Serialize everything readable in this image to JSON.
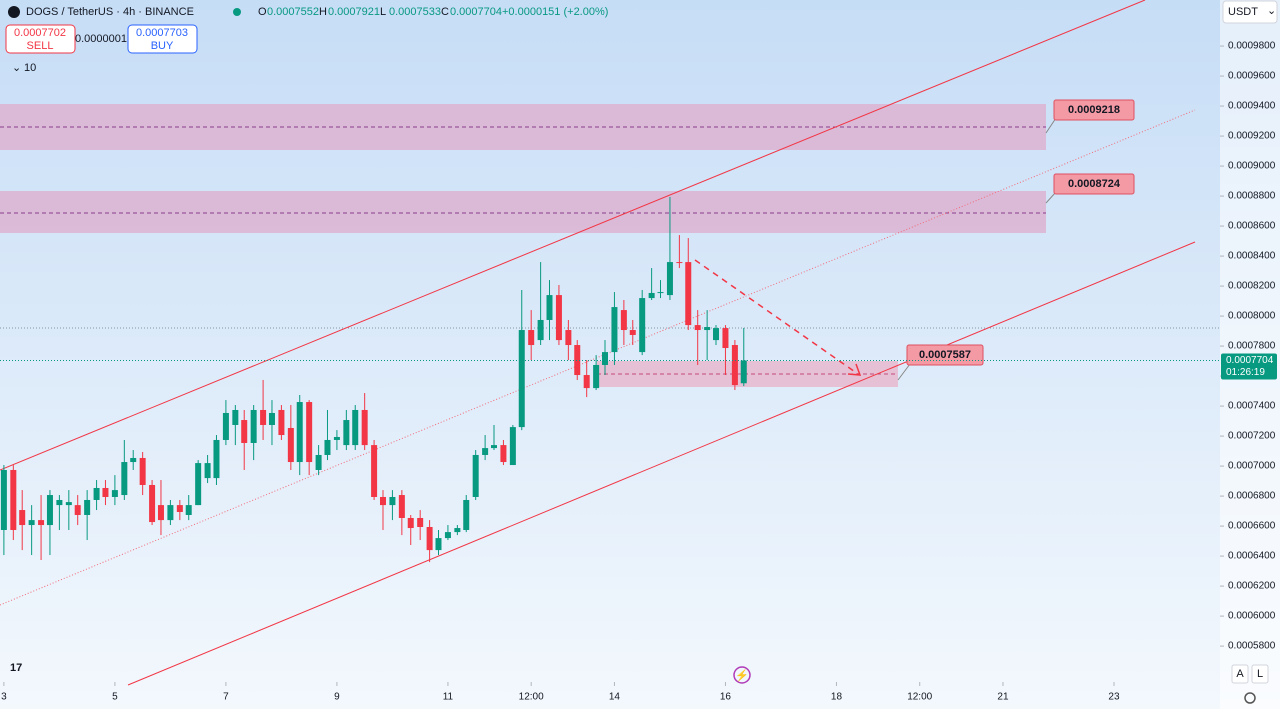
{
  "ui": {
    "symbol": "DOGS / TetherUS · 4h · BINANCE",
    "ohlc": [
      {
        "key": "O",
        "value": "0.0007552"
      },
      {
        "key": "H",
        "value": "0.0007921"
      },
      {
        "key": "L",
        "value": "0.0007533"
      },
      {
        "key": "C",
        "value": "0.0007704"
      }
    ],
    "change": "+0.0000151 (+2.00%)",
    "sell": {
      "price": "0.0007702",
      "label": "SELL"
    },
    "spread": "0.0000001",
    "buy": {
      "price": "0.0007703",
      "label": "BUY"
    },
    "indicator": "10",
    "currency": "USDT",
    "buttons": [
      "A",
      "L"
    ]
  },
  "chart_data": {
    "type": "candlestick",
    "x": [
      3,
      3.17,
      3.33,
      3.5,
      3.67,
      3.83,
      4,
      4.17,
      4.33,
      4.5,
      4.67,
      4.83,
      5,
      5.17,
      5.33,
      5.5,
      5.67,
      5.83,
      6,
      6.17,
      6.33,
      6.5,
      6.67,
      6.83,
      7,
      7.17,
      7.33,
      7.5,
      7.67,
      7.83,
      8,
      8.17,
      8.33,
      8.5,
      8.67,
      8.83,
      9,
      9.17,
      9.33,
      9.5,
      9.67,
      9.83,
      10,
      10.17,
      10.33,
      10.5,
      10.67,
      10.83,
      11,
      11.17,
      11.33,
      11.5,
      11.67,
      11.83,
      12,
      12.17,
      12.33,
      12.5,
      12.67,
      12.83,
      13,
      13.17,
      13.33,
      13.5,
      13.67,
      13.83,
      14,
      14.17,
      14.33,
      14.5,
      14.67,
      14.83,
      15,
      15.17,
      15.33,
      15.5,
      15.67,
      15.83,
      16,
      16.17,
      16.33
    ],
    "open": [
      0.0006574,
      0.0006974,
      0.0006707,
      0.0006607,
      0.000664,
      0.0006607,
      0.000674,
      0.000674,
      0.000674,
      0.0006674,
      0.0006774,
      0.0006854,
      0.0006794,
      0.0006807,
      0.0007027,
      0.0007054,
      0.0006874,
      0.000674,
      0.000664,
      0.000674,
      0.0006674,
      0.000674,
      0.000692,
      0.000692,
      0.0007174,
      0.0007274,
      0.0007307,
      0.0007154,
      0.0007374,
      0.0007274,
      0.0007374,
      0.0007254,
      0.0007027,
      0.0007427,
      0.0006974,
      0.0007074,
      0.0007174,
      0.000714,
      0.000714,
      0.0007374,
      0.000714,
      0.0006794,
      0.000674,
      0.0006807,
      0.0006654,
      0.0006654,
      0.0006594,
      0.000644,
      0.000652,
      0.000656,
      0.0006574,
      0.0006794,
      0.0007074,
      0.000712,
      0.000714,
      0.0007007,
      0.000726,
      0.0007907,
      0.000784,
      0.0007974,
      0.000814,
      0.0007907,
      0.0007807,
      0.0007607,
      0.000752,
      0.0007674,
      0.000776,
      0.000804,
      0.0007907,
      0.000776,
      0.000812,
      0.0008154,
      0.000814,
      0.000836,
      0.000836,
      0.000794,
      0.0007907,
      0.000784,
      0.000792,
      0.0007807,
      0.0007552
    ],
    "high": [
      0.0007007,
      0.0007007,
      0.000684,
      0.000674,
      0.0006807,
      0.000684,
      0.0006807,
      0.000684,
      0.0006807,
      0.000684,
      0.0006907,
      0.0006907,
      0.000694,
      0.0007174,
      0.0007107,
      0.0007094,
      0.0006907,
      0.0006907,
      0.0006774,
      0.0006774,
      0.0006807,
      0.000704,
      0.0007074,
      0.0007207,
      0.000744,
      0.0007407,
      0.0007374,
      0.0007407,
      0.0007574,
      0.000744,
      0.0007407,
      0.0007407,
      0.0007474,
      0.000744,
      0.000714,
      0.0007374,
      0.000724,
      0.0007374,
      0.0007407,
      0.0007487,
      0.0007174,
      0.000684,
      0.000684,
      0.000684,
      0.0006674,
      0.0006707,
      0.000664,
      0.0006574,
      0.0006607,
      0.0006607,
      0.0006807,
      0.0007107,
      0.0007207,
      0.0007274,
      0.0007174,
      0.0007274,
      0.0008174,
      0.000804,
      0.000836,
      0.000824,
      0.0008207,
      0.0007974,
      0.000784,
      0.0007707,
      0.000774,
      0.000784,
      0.000816,
      0.0008107,
      0.0007974,
      0.0008174,
      0.000832,
      0.000824,
      0.0008794,
      0.000854,
      0.000852,
      0.000804,
      0.000804,
      0.000794,
      0.000794,
      0.000784,
      0.0007921
    ],
    "low": [
      0.0006407,
      0.0006507,
      0.000644,
      0.0006407,
      0.0006374,
      0.0006407,
      0.0006574,
      0.0006574,
      0.0006607,
      0.0006507,
      0.0006707,
      0.000674,
      0.000674,
      0.0006774,
      0.0006974,
      0.0006807,
      0.0006607,
      0.000654,
      0.0006607,
      0.000664,
      0.000664,
      0.000674,
      0.0006887,
      0.0006874,
      0.000714,
      0.000714,
      0.0006974,
      0.000704,
      0.0007174,
      0.000714,
      0.0007174,
      0.0006974,
      0.000694,
      0.000694,
      0.000694,
      0.000704,
      0.0007107,
      0.0007107,
      0.0007107,
      0.0007107,
      0.0006774,
      0.0006574,
      0.000664,
      0.000654,
      0.0006474,
      0.0006507,
      0.000636,
      0.0006407,
      0.0006507,
      0.000654,
      0.000656,
      0.0006774,
      0.000704,
      0.0007107,
      0.0007007,
      0.0007007,
      0.000724,
      0.0007707,
      0.0007807,
      0.000784,
      0.0007807,
      0.0007707,
      0.0007574,
      0.000746,
      0.0007507,
      0.0007607,
      0.0007674,
      0.0007807,
      0.0007807,
      0.000774,
      0.0008107,
      0.000812,
      0.0008107,
      0.000832,
      0.0007907,
      0.0007674,
      0.0007707,
      0.0007807,
      0.0007607,
      0.0007507,
      0.0007533
    ],
    "close": [
      0.0006974,
      0.0006574,
      0.0006607,
      0.000664,
      0.0006607,
      0.0006807,
      0.0006774,
      0.000676,
      0.0006674,
      0.0006774,
      0.0006854,
      0.0006794,
      0.000684,
      0.0007027,
      0.0007054,
      0.0006874,
      0.0006627,
      0.000664,
      0.000674,
      0.0006694,
      0.000674,
      0.000702,
      0.000702,
      0.0007174,
      0.0007354,
      0.0007374,
      0.0007154,
      0.0007374,
      0.0007274,
      0.0007354,
      0.0007207,
      0.0007027,
      0.0007427,
      0.0007027,
      0.0007074,
      0.0007174,
      0.0007194,
      0.0007307,
      0.0007374,
      0.000714,
      0.0006794,
      0.000674,
      0.0006794,
      0.0006654,
      0.0006587,
      0.0006594,
      0.000644,
      0.000652,
      0.000656,
      0.0006587,
      0.0006774,
      0.0007074,
      0.000712,
      0.000714,
      0.0007027,
      0.000726,
      0.0007907,
      0.0007807,
      0.0007974,
      0.000814,
      0.000784,
      0.0007807,
      0.0007607,
      0.000752,
      0.0007674,
      0.000776,
      0.000806,
      0.0007907,
      0.0007874,
      0.000812,
      0.0008154,
      0.000816,
      0.000836,
      0.0008354,
      0.000794,
      0.0007907,
      0.0007927,
      0.000792,
      0.0007787,
      0.000754,
      0.0007704
    ],
    "up_color": "#089981",
    "down_color": "#f23645",
    "xlim": [
      2.93,
      24.91
    ],
    "xticks": [
      3,
      5,
      7,
      9,
      11,
      {
        "value": 12.5,
        "label": "12:00"
      },
      14,
      16,
      18,
      {
        "value": 19.5,
        "label": "12:00"
      },
      21,
      23
    ],
    "ylim": [
      0.0005574,
      0.0010107
    ],
    "yticks": [
      {
        "value": 0.00058,
        "label": "0.0005800"
      },
      {
        "value": 0.0006,
        "label": "0.0006000"
      },
      {
        "value": 0.00062,
        "label": "0.0006200"
      },
      {
        "value": 0.00064,
        "label": "0.0006400"
      },
      {
        "value": 0.00066,
        "label": "0.0006600"
      },
      {
        "value": 0.00068,
        "label": "0.0006800"
      },
      {
        "value": 0.0007,
        "label": "0.0007000"
      },
      {
        "value": 0.00072,
        "label": "0.0007200"
      },
      {
        "value": 0.00074,
        "label": "0.0007400"
      },
      {
        "value": 0.00076,
        "label": "0.0007600"
      },
      {
        "value": 0.00078,
        "label": "0.0007800"
      },
      {
        "value": 0.0008,
        "label": "0.0008000"
      },
      {
        "value": 0.00082,
        "label": "0.0008200"
      },
      {
        "value": 0.00084,
        "label": "0.0008400"
      },
      {
        "value": 0.00086,
        "label": "0.0008600"
      },
      {
        "value": 0.00088,
        "label": "0.0008800"
      },
      {
        "value": 0.0009,
        "label": "0.0009000"
      },
      {
        "value": 0.00092,
        "label": "0.0009200"
      },
      {
        "value": 0.00094,
        "label": "0.0009400"
      },
      {
        "value": 0.00096,
        "label": "0.0009600"
      },
      {
        "value": 0.00098,
        "label": "0.0009800"
      }
    ],
    "grid": false,
    "annotations": [
      "0.0009218",
      "0.0008724",
      "0.0007587"
    ],
    "last_price": {
      "label": "0.0007704",
      "countdown": "01:26:19"
    }
  }
}
